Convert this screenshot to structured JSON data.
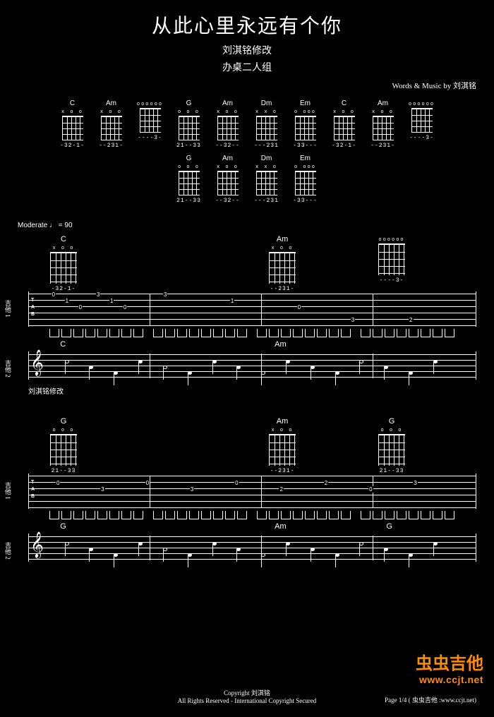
{
  "title": "从此心里永远有个你",
  "subtitle": "刘淇铭修改",
  "group": "办桌二人组",
  "credits": "Words & Music by 刘淇铭",
  "tempo": "Moderate ♩ = 90",
  "annotation": "刘淇铭修改",
  "chord_header_ref": {
    "row1": [
      {
        "name": "C",
        "header": "x  o  o",
        "fingers": "-32-1-"
      },
      {
        "name": "Am",
        "header": "x o   o",
        "fingers": "--231-"
      },
      {
        "name": "",
        "header": "oooooo",
        "fingers": "----3-"
      },
      {
        "name": "G",
        "header": "  o o o",
        "fingers": "21--33"
      },
      {
        "name": "Am",
        "header": "x o   o",
        "fingers": "--32--"
      },
      {
        "name": "Dm",
        "header": "x x o",
        "fingers": "---231"
      },
      {
        "name": "Em",
        "header": "o    ooo",
        "fingers": "-33---"
      },
      {
        "name": "C",
        "header": "x  o  o",
        "fingers": "-32-1-"
      },
      {
        "name": "Am",
        "header": "x o   o",
        "fingers": "--231-"
      },
      {
        "name": "",
        "header": "oooooo",
        "fingers": "----3-"
      }
    ],
    "row2": [
      {
        "name": "G",
        "header": "  o o o",
        "fingers": "21--33"
      },
      {
        "name": "Am",
        "header": "x o   o",
        "fingers": "--32--"
      },
      {
        "name": "Dm",
        "header": "x x o",
        "fingers": "---231"
      },
      {
        "name": "Em",
        "header": "o    ooo",
        "fingers": "-33---"
      }
    ]
  },
  "system1": {
    "chords_over_tab": [
      {
        "name": "C",
        "header": "x  o  o",
        "fingers": "-32-1-",
        "left_pct": 5
      },
      {
        "name": "Am",
        "header": "x o   o",
        "fingers": "--231-",
        "left_pct": 55
      },
      {
        "name": "",
        "header": "oooooo",
        "fingers": "----3-",
        "left_pct": 80
      }
    ],
    "track1_label": "吉他 1",
    "tab_numbers_top": [
      "0",
      "1",
      "0",
      "3",
      "1",
      "0",
      "3",
      "1",
      "0"
    ],
    "tab_numbers_low": [
      "3",
      "2"
    ],
    "barlines_pct": [
      27,
      52,
      77
    ],
    "track2_label": "吉他 2",
    "staff_chords": [
      {
        "label": "C",
        "left_pct": 7
      },
      {
        "label": "Am",
        "left_pct": 55
      }
    ]
  },
  "system2": {
    "chords_over_tab": [
      {
        "name": "G",
        "header": "  o o o",
        "fingers": "21--33",
        "left_pct": 5
      },
      {
        "name": "Am",
        "header": "x o   o",
        "fingers": "--231-",
        "left_pct": 55
      },
      {
        "name": "G",
        "header": "  o o o",
        "fingers": "21--33",
        "left_pct": 80
      }
    ],
    "track1_label": "吉他 1",
    "barlines_pct": [
      27,
      52,
      77
    ],
    "track2_label": "吉他 2",
    "staff_chords": [
      {
        "label": "G",
        "left_pct": 7
      },
      {
        "label": "Am",
        "left_pct": 55
      },
      {
        "label": "G",
        "left_pct": 80
      }
    ]
  },
  "watermark": {
    "main": "虫虫吉他",
    "url": "www.ccjt.net"
  },
  "footer": {
    "copyright": "Copyright 刘淇铭",
    "rights": "All Rights Reserved - International Copyright Secured",
    "page": "Page 1/4 ( 虫虫吉他 :www.ccjt.net)"
  },
  "colors": {
    "bg": "#000000",
    "fg": "#ffffff",
    "accent": "#ff8c00"
  }
}
